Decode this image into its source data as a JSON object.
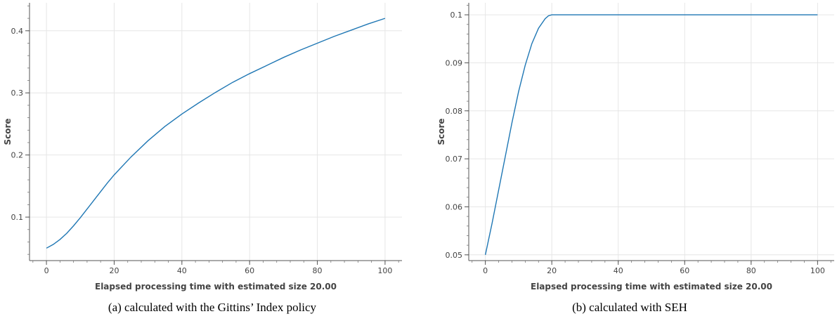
{
  "chart_data": [
    {
      "type": "line",
      "caption": "(a) calculated with the Gittins’ Index policy",
      "xlabel": "Elapsed processing time with estimated size 20.00",
      "ylabel": "Score",
      "xlim": [
        -5,
        105
      ],
      "ylim": [
        0.03,
        0.445
      ],
      "xticks": [
        0,
        20,
        40,
        60,
        80,
        100
      ],
      "yticks": [
        0.1,
        0.2,
        0.3,
        0.4
      ],
      "ytick_labels": [
        "0.1",
        "0.2",
        "0.3",
        "0.4"
      ],
      "grid": true,
      "color": "#1f77b4",
      "series": [
        {
          "x": [
            0,
            2,
            4,
            6,
            8,
            10,
            12,
            14,
            16,
            18,
            20,
            25,
            30,
            35,
            40,
            45,
            50,
            55,
            60,
            65,
            70,
            75,
            80,
            85,
            90,
            95,
            100
          ],
          "y": [
            0.05,
            0.056,
            0.064,
            0.074,
            0.086,
            0.099,
            0.113,
            0.127,
            0.141,
            0.155,
            0.168,
            0.197,
            0.223,
            0.246,
            0.266,
            0.284,
            0.301,
            0.317,
            0.331,
            0.344,
            0.357,
            0.369,
            0.38,
            0.391,
            0.401,
            0.411,
            0.42
          ]
        }
      ]
    },
    {
      "type": "line",
      "caption": "(b) calculated with SEH",
      "xlabel": "Elapsed processing time with estimated size 20.00",
      "ylabel": "Score",
      "xlim": [
        -5,
        105
      ],
      "ylim": [
        0.0488,
        0.1025
      ],
      "xticks": [
        0,
        20,
        40,
        60,
        80,
        100
      ],
      "yticks": [
        0.05,
        0.06,
        0.07,
        0.08,
        0.09,
        0.1
      ],
      "ytick_labels": [
        "0.05",
        "0.06",
        "0.07",
        "0.08",
        "0.09",
        "0.1"
      ],
      "grid": true,
      "color": "#1f77b4",
      "series": [
        {
          "x": [
            0,
            2,
            4,
            6,
            8,
            10,
            12,
            14,
            16,
            18,
            19,
            20,
            40,
            60,
            80,
            100
          ],
          "y": [
            0.05,
            0.0565,
            0.0635,
            0.0705,
            0.0775,
            0.084,
            0.0895,
            0.094,
            0.0972,
            0.0992,
            0.0998,
            0.1,
            0.1,
            0.1,
            0.1,
            0.1
          ]
        }
      ]
    }
  ]
}
